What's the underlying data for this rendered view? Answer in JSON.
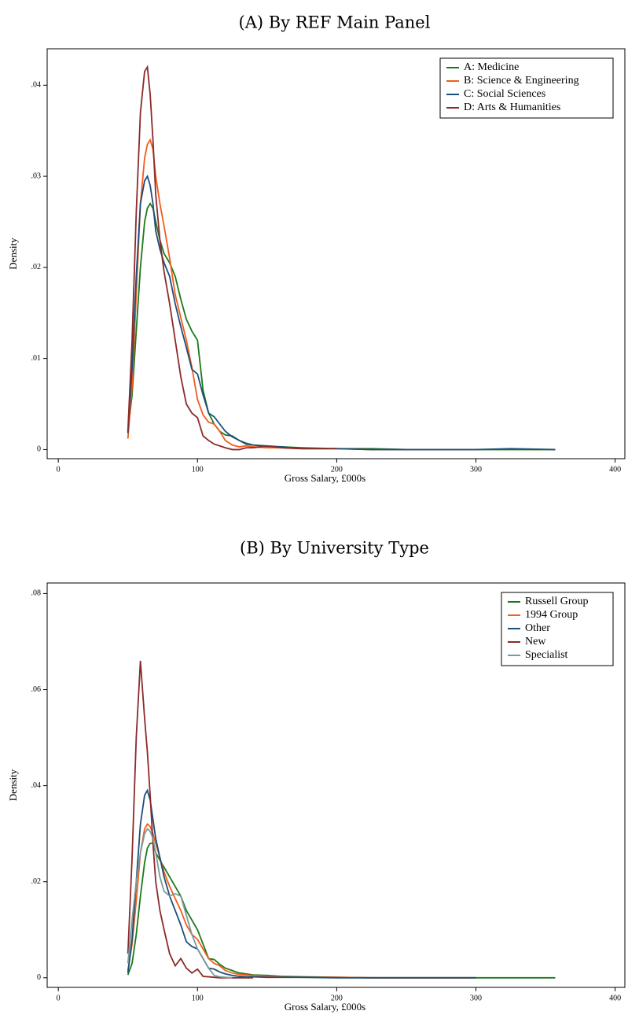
{
  "chart_data": [
    {
      "type": "line",
      "title": "(A) By REF Main Panel",
      "xlabel": "Gross Salary, £000s",
      "ylabel": "Density",
      "x": [
        50,
        53,
        56,
        59,
        62,
        64,
        66,
        68,
        70,
        73,
        76,
        80,
        84,
        88,
        92,
        96,
        100,
        104,
        108,
        112,
        116,
        120,
        125,
        130,
        135,
        140,
        150,
        160,
        175,
        200,
        225,
        250,
        275,
        300,
        325,
        357
      ],
      "series": [
        {
          "name": "A: Medicine",
          "color": "#1a7a1a",
          "values": [
            0.002,
            0.006,
            0.013,
            0.02,
            0.025,
            0.0265,
            0.027,
            0.0265,
            0.025,
            0.023,
            0.0215,
            0.0205,
            0.019,
            0.0165,
            0.0143,
            0.013,
            0.012,
            0.0065,
            0.004,
            0.0028,
            0.002,
            0.0016,
            0.0015,
            0.001,
            0.0007,
            0.0005,
            0.0003,
            0.0003,
            0.0002,
            0.0001,
            0.0001,
            0,
            0,
            0,
            0,
            0
          ]
        },
        {
          "name": "B: Science & Engineering",
          "color": "#f25c1c",
          "values": [
            0.0012,
            0.007,
            0.017,
            0.027,
            0.032,
            0.0335,
            0.034,
            0.033,
            0.03,
            0.027,
            0.0245,
            0.021,
            0.017,
            0.0145,
            0.012,
            0.009,
            0.0055,
            0.0038,
            0.003,
            0.0028,
            0.002,
            0.001,
            0.0005,
            0.0003,
            0.0004,
            0.0003,
            0.0002,
            0.0002,
            0.0001,
            0.0001,
            0,
            0,
            0,
            0,
            null,
            null
          ]
        },
        {
          "name": "C: Social Sciences",
          "color": "#1f4e79",
          "values": [
            0.0018,
            0.009,
            0.019,
            0.027,
            0.0295,
            0.03,
            0.029,
            0.027,
            0.024,
            0.022,
            0.0205,
            0.019,
            0.016,
            0.0135,
            0.0112,
            0.0088,
            0.0083,
            0.006,
            0.004,
            0.0036,
            0.0028,
            0.002,
            0.0014,
            0.001,
            0.0006,
            0.0005,
            0.0004,
            0.0003,
            0.0001,
            0.0001,
            0,
            0,
            0,
            0,
            0.0001,
            0
          ]
        },
        {
          "name": "D: Arts & Humanities",
          "color": "#8b2a2a",
          "values": [
            0.002,
            0.012,
            0.026,
            0.037,
            0.0415,
            0.042,
            0.039,
            0.034,
            0.028,
            0.023,
            0.0195,
            0.016,
            0.012,
            0.008,
            0.005,
            0.004,
            0.0035,
            0.0015,
            0.001,
            0.0006,
            0.0004,
            0.0002,
            0,
            0,
            0.0002,
            0.0002,
            0.0004,
            0.0002,
            0.0001,
            0.0001,
            null,
            null,
            null,
            null,
            null,
            null
          ]
        }
      ],
      "xlim": [
        -8,
        407
      ],
      "ylim": [
        -0.001,
        0.044
      ],
      "xticks": [
        0,
        100,
        200,
        300,
        400
      ],
      "yticks": [
        0,
        {
          "value": 0.01,
          "label": ".01"
        },
        {
          "value": 0.02,
          "label": ".02"
        },
        {
          "value": 0.03,
          "label": ".03"
        },
        {
          "value": 0.04,
          "label": ".04"
        }
      ],
      "legend": "top-right"
    },
    {
      "type": "line",
      "title": "(B) By University Type",
      "xlabel": "Gross Salary, £000s",
      "ylabel": "Density",
      "x": [
        50,
        53,
        56,
        59,
        62,
        64,
        66,
        68,
        70,
        73,
        76,
        80,
        84,
        88,
        92,
        96,
        100,
        104,
        108,
        112,
        116,
        120,
        125,
        130,
        135,
        140,
        150,
        160,
        175,
        200,
        225,
        250,
        275,
        300,
        325,
        357
      ],
      "series": [
        {
          "name": "Russell Group",
          "color": "#1a7a1a",
          "values": [
            0.0006,
            0.003,
            0.009,
            0.017,
            0.024,
            0.027,
            0.028,
            0.028,
            0.026,
            0.0245,
            0.023,
            0.021,
            0.019,
            0.017,
            0.014,
            0.012,
            0.01,
            0.007,
            0.004,
            0.0038,
            0.0028,
            0.002,
            0.0015,
            0.001,
            0.0008,
            0.0006,
            0.0005,
            0.0003,
            0.0002,
            0.0001,
            0,
            0,
            0,
            0,
            0,
            0
          ]
        },
        {
          "name": "1994 Group",
          "color": "#f25c1c",
          "values": [
            0.0015,
            0.007,
            0.016,
            0.026,
            0.031,
            0.032,
            0.0315,
            0.03,
            0.028,
            0.025,
            0.022,
            0.019,
            0.0165,
            0.014,
            0.011,
            0.009,
            0.008,
            0.006,
            0.004,
            0.003,
            0.0025,
            0.0015,
            0.001,
            0.0007,
            0.0006,
            0.0005,
            0.0003,
            0.0002,
            0.0001,
            0.0001,
            0,
            0,
            0,
            0,
            null,
            null
          ]
        },
        {
          "name": "Other",
          "color": "#1f4e79",
          "values": [
            0.001,
            0.008,
            0.02,
            0.032,
            0.038,
            0.039,
            0.037,
            0.033,
            0.029,
            0.025,
            0.021,
            0.017,
            0.014,
            0.011,
            0.0075,
            0.0065,
            0.006,
            0.004,
            0.002,
            0.0018,
            0.0012,
            0.0008,
            0.0005,
            0.0003,
            0.0002,
            0.0002,
            0.0001,
            0.0001,
            0.0001,
            0,
            0,
            0,
            0,
            0,
            null,
            null
          ]
        },
        {
          "name": "New",
          "color": "#8b2a2a",
          "values": [
            0.005,
            0.025,
            0.05,
            0.066,
            0.054,
            0.047,
            0.038,
            0.028,
            0.02,
            0.014,
            0.01,
            0.005,
            0.0025,
            0.004,
            0.002,
            0.001,
            0.0018,
            0.0003,
            0.0002,
            0.0001,
            0,
            0,
            0,
            0,
            0,
            0,
            null,
            null,
            null,
            null,
            null,
            null,
            null,
            null,
            null,
            null
          ]
        },
        {
          "name": "Specialist",
          "color": "#7a9a9a",
          "values": [
            0.003,
            0.012,
            0.02,
            0.026,
            0.03,
            0.031,
            0.0305,
            0.029,
            0.026,
            0.021,
            0.018,
            0.017,
            0.0175,
            0.017,
            0.013,
            0.009,
            0.006,
            0.004,
            0.002,
            0.0005,
            0.0002,
            0.0001,
            0,
            null,
            null,
            null,
            null,
            null,
            null,
            null,
            null,
            null,
            null,
            null,
            null,
            null
          ]
        }
      ],
      "xlim": [
        -8,
        407
      ],
      "ylim": [
        -0.002,
        0.0822
      ],
      "xticks": [
        0,
        100,
        200,
        300,
        400
      ],
      "yticks": [
        0,
        {
          "value": 0.02,
          "label": ".02"
        },
        {
          "value": 0.04,
          "label": ".04"
        },
        {
          "value": 0.06,
          "label": ".06"
        },
        {
          "value": 0.08,
          "label": ".08"
        }
      ],
      "legend": "top-right"
    }
  ]
}
